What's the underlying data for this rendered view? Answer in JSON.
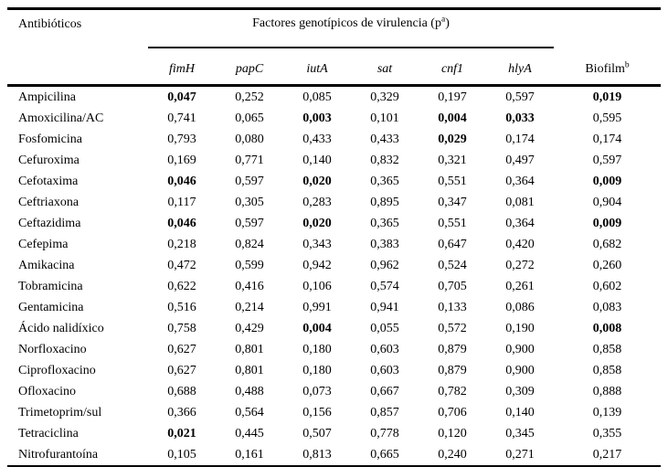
{
  "page": {
    "background_color": "#ffffff",
    "text_color": "#000000"
  },
  "table": {
    "title_column_header": "Antibióticos",
    "group_header": {
      "prefix": "Factores genotípicos de virulencia (p",
      "sup": "a",
      "suffix": ")"
    },
    "gene_columns": [
      "fimH",
      "papC",
      "iutA",
      "sat",
      "cnf1",
      "hlyA"
    ],
    "biofilm_header": {
      "label": "Biofilm",
      "sup": "b"
    },
    "rows": [
      {
        "name": "Ampicilina",
        "values": [
          "0,047",
          "0,252",
          "0,085",
          "0,329",
          "0,197",
          "0,597",
          "0,019"
        ],
        "bold": [
          0,
          6
        ]
      },
      {
        "name": "Amoxicilina/AC",
        "values": [
          "0,741",
          "0,065",
          "0,003",
          "0,101",
          "0,004",
          "0,033",
          "0,595"
        ],
        "bold": [
          2,
          4,
          5
        ]
      },
      {
        "name": "Fosfomicina",
        "values": [
          "0,793",
          "0,080",
          "0,433",
          "0,433",
          "0,029",
          "0,174",
          "0,174"
        ],
        "bold": [
          4
        ]
      },
      {
        "name": "Cefuroxima",
        "values": [
          "0,169",
          "0,771",
          "0,140",
          "0,832",
          "0,321",
          "0,497",
          "0,597"
        ],
        "bold": []
      },
      {
        "name": "Cefotaxima",
        "values": [
          "0,046",
          "0,597",
          "0,020",
          "0,365",
          "0,551",
          "0,364",
          "0,009"
        ],
        "bold": [
          0,
          2,
          6
        ]
      },
      {
        "name": "Ceftriaxona",
        "values": [
          "0,117",
          "0,305",
          "0,283",
          "0,895",
          "0,347",
          "0,081",
          "0,904"
        ],
        "bold": []
      },
      {
        "name": "Ceftazidima",
        "values": [
          "0,046",
          "0,597",
          "0,020",
          "0,365",
          "0,551",
          "0,364",
          "0,009"
        ],
        "bold": [
          0,
          2,
          6
        ]
      },
      {
        "name": "Cefepima",
        "values": [
          "0,218",
          "0,824",
          "0,343",
          "0,383",
          "0,647",
          "0,420",
          "0,682"
        ],
        "bold": []
      },
      {
        "name": "Amikacina",
        "values": [
          "0,472",
          "0,599",
          "0,942",
          "0,962",
          "0,524",
          "0,272",
          "0,260"
        ],
        "bold": []
      },
      {
        "name": "Tobramicina",
        "values": [
          "0,622",
          "0,416",
          "0,106",
          "0,574",
          "0,705",
          "0,261",
          "0,602"
        ],
        "bold": []
      },
      {
        "name": "Gentamicina",
        "values": [
          "0,516",
          "0,214",
          "0,991",
          "0,941",
          "0,133",
          "0,086",
          "0,083"
        ],
        "bold": []
      },
      {
        "name": "Ácido nalidíxico",
        "values": [
          "0,758",
          "0,429",
          "0,004",
          "0,055",
          "0,572",
          "0,190",
          "0,008"
        ],
        "bold": [
          2,
          6
        ]
      },
      {
        "name": "Norfloxacino",
        "values": [
          "0,627",
          "0,801",
          "0,180",
          "0,603",
          "0,879",
          "0,900",
          "0,858"
        ],
        "bold": []
      },
      {
        "name": "Ciprofloxacino",
        "values": [
          "0,627",
          "0,801",
          "0,180",
          "0,603",
          "0,879",
          "0,900",
          "0,858"
        ],
        "bold": []
      },
      {
        "name": "Ofloxacino",
        "values": [
          "0,688",
          "0,488",
          "0,073",
          "0,667",
          "0,782",
          "0,309",
          "0,888"
        ],
        "bold": []
      },
      {
        "name": "Trimetoprim/sul",
        "values": [
          "0,366",
          "0,564",
          "0,156",
          "0,857",
          "0,706",
          "0,140",
          "0,139"
        ],
        "bold": []
      },
      {
        "name": "Tetraciclina",
        "values": [
          "0,021",
          "0,445",
          "0,507",
          "0,778",
          "0,120",
          "0,345",
          "0,355"
        ],
        "bold": [
          0
        ]
      },
      {
        "name": "Nitrofurantoína",
        "values": [
          "0,105",
          "0,161",
          "0,813",
          "0,665",
          "0,240",
          "0,271",
          "0,217"
        ],
        "bold": []
      }
    ]
  }
}
